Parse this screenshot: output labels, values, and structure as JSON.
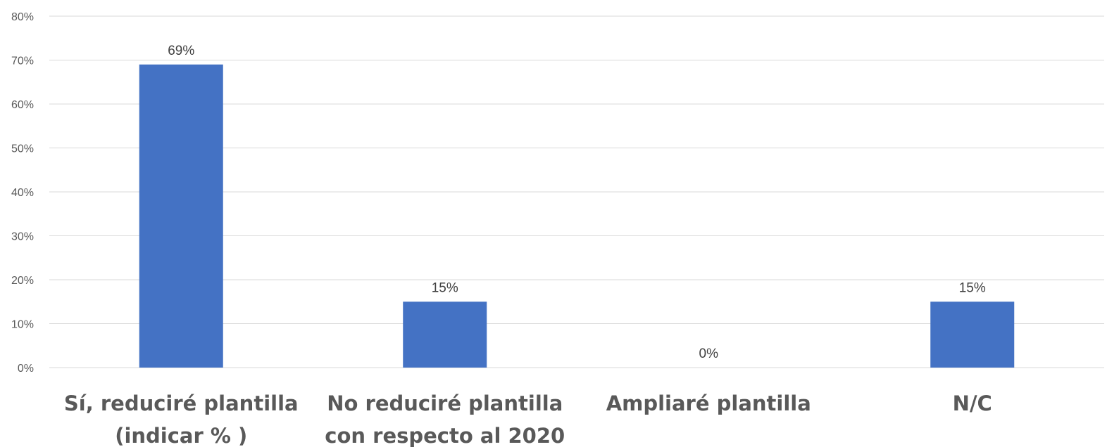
{
  "chart_data": {
    "type": "bar",
    "categories": [
      [
        "Sí, reduciré plantilla",
        "(indicar % )"
      ],
      [
        "No reduciré plantilla",
        "con respecto al 2020"
      ],
      [
        "Ampliaré plantilla"
      ],
      [
        "N/C"
      ]
    ],
    "values": [
      69,
      15,
      0,
      15
    ],
    "data_labels": [
      "69%",
      "15%",
      "0%",
      "15%"
    ],
    "ylim": [
      0,
      80
    ],
    "yticks": [
      0,
      10,
      20,
      30,
      40,
      50,
      60,
      70,
      80
    ],
    "ytick_labels": [
      "0%",
      "10%",
      "20%",
      "30%",
      "40%",
      "50%",
      "60%",
      "70%",
      "80%"
    ],
    "title": "",
    "xlabel": "",
    "ylabel": "",
    "grid": true,
    "legend": "none",
    "bar_color": "#4472C4"
  }
}
